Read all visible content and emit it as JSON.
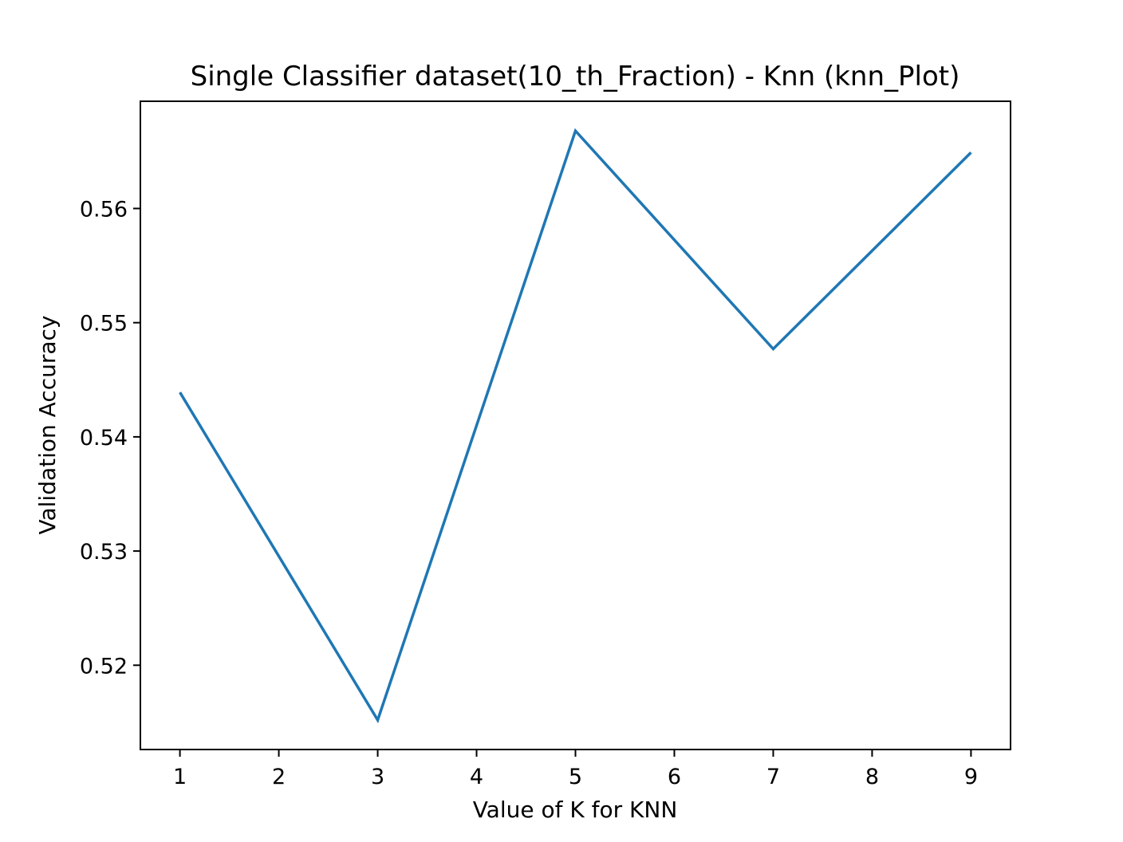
{
  "chart_data": {
    "type": "line",
    "title": "Single Classifier dataset(10_th_Fraction) - Knn (knn_Plot)",
    "xlabel": "Value of K for KNN",
    "ylabel": "Validation Accuracy",
    "x": [
      1,
      3,
      5,
      7,
      9
    ],
    "series": [
      {
        "values": [
          0.5439,
          0.5152,
          0.5668,
          0.5477,
          0.5649
        ]
      }
    ],
    "xlim": [
      0.6,
      9.4
    ],
    "ylim": [
      0.51262,
      0.56939
    ],
    "xticks": [
      1,
      2,
      3,
      4,
      5,
      6,
      7,
      8,
      9
    ],
    "xtick_labels": [
      "1",
      "2",
      "3",
      "4",
      "5",
      "6",
      "7",
      "8",
      "9"
    ],
    "yticks": [
      0.52,
      0.53,
      0.54,
      0.55,
      0.56
    ],
    "ytick_labels": [
      "0.52",
      "0.53",
      "0.54",
      "0.55",
      "0.56"
    ],
    "grid": false,
    "colors": {
      "series": "#1f77b4",
      "axes": "#000000"
    }
  }
}
